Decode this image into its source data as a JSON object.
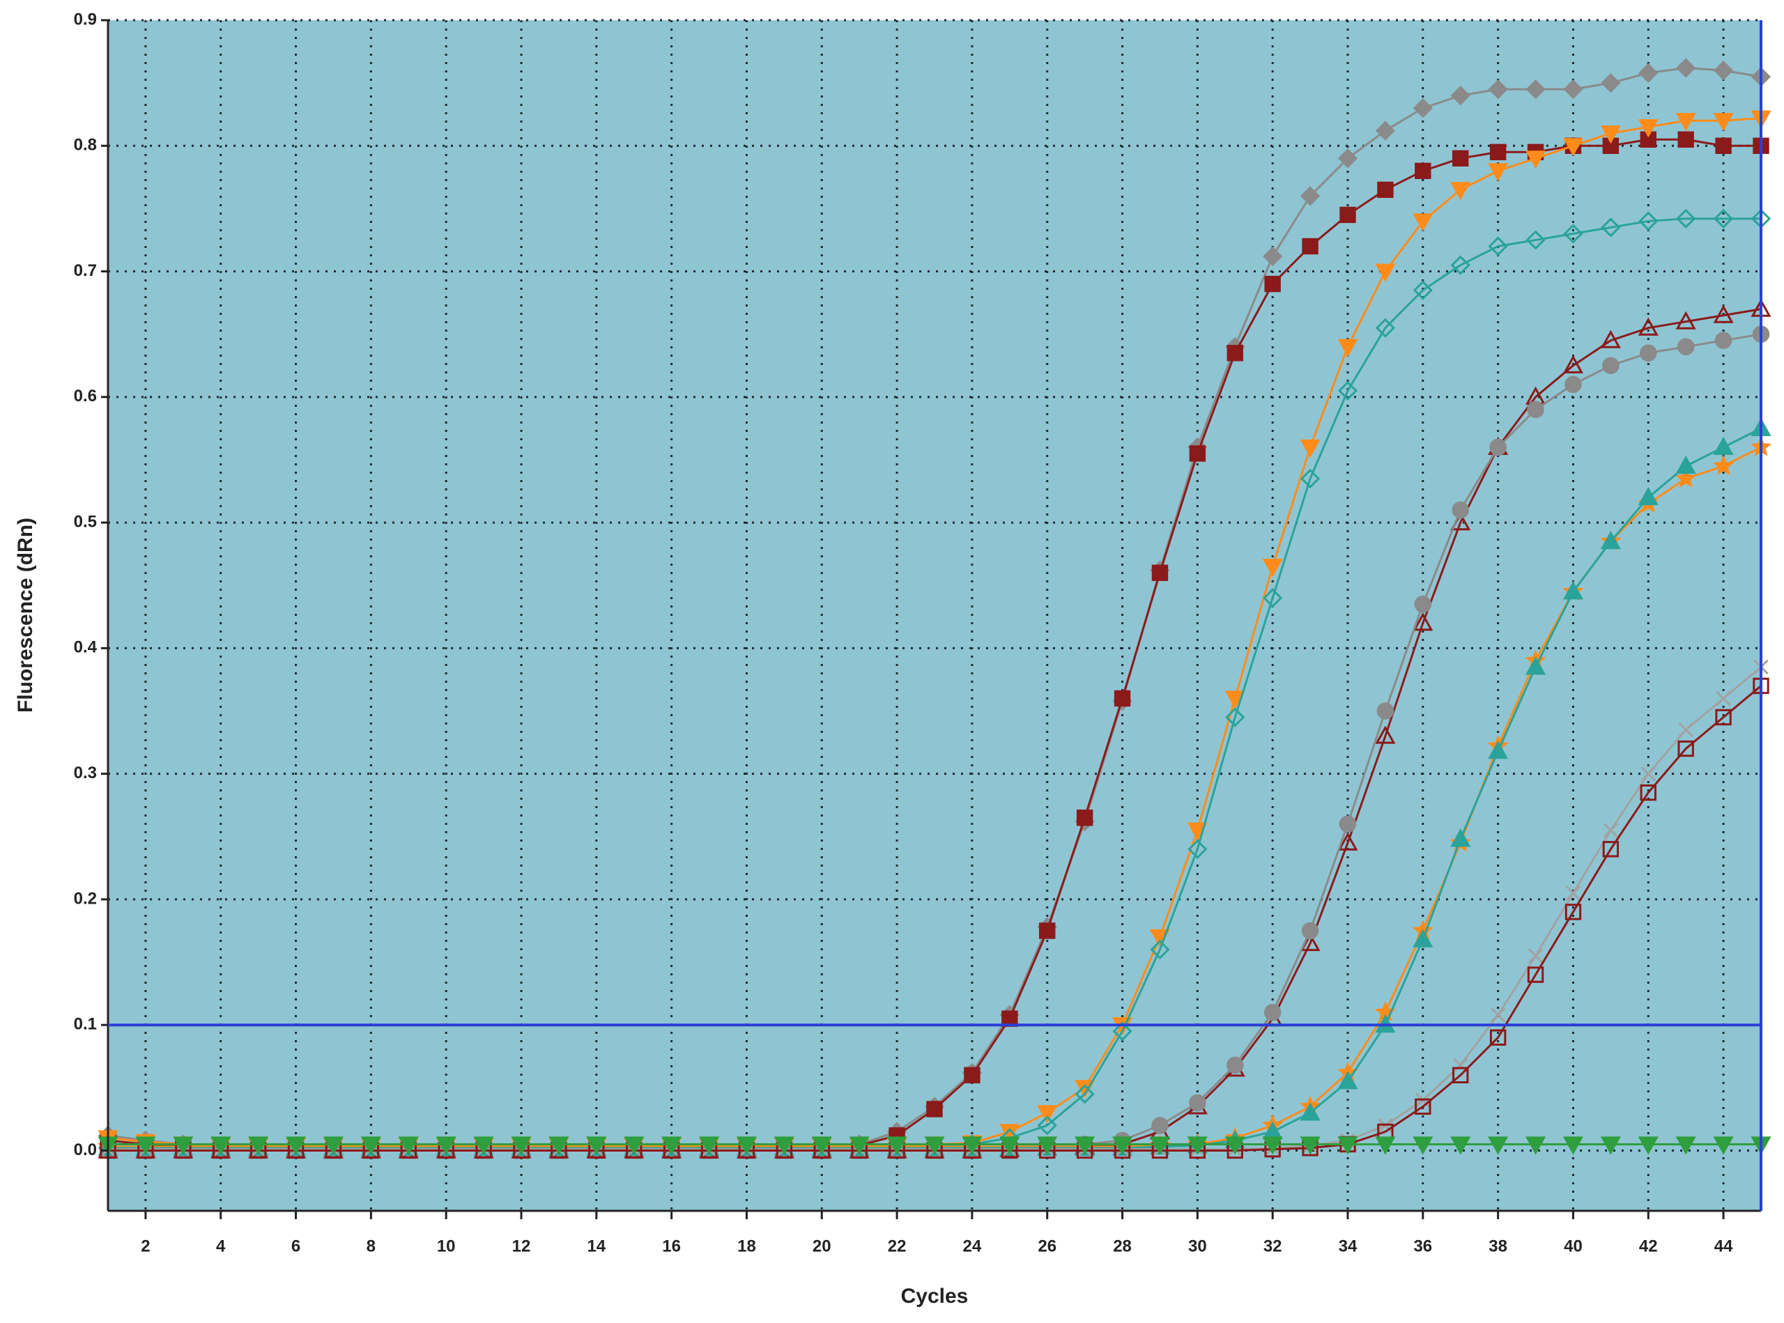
{
  "chart_data": {
    "type": "line",
    "y_label": "Fluorescence (dRn)",
    "x_label": "Cycles",
    "x": [
      1,
      2,
      3,
      4,
      5,
      6,
      7,
      8,
      9,
      10,
      11,
      12,
      13,
      14,
      15,
      16,
      17,
      18,
      19,
      20,
      21,
      22,
      23,
      24,
      25,
      26,
      27,
      28,
      29,
      30,
      31,
      32,
      33,
      34,
      35,
      36,
      37,
      38,
      39,
      40,
      41,
      42,
      43,
      44,
      45
    ],
    "xlim": [
      1,
      45
    ],
    "xticks": [
      2,
      4,
      6,
      8,
      10,
      12,
      14,
      16,
      18,
      20,
      22,
      24,
      26,
      28,
      30,
      32,
      34,
      36,
      38,
      40,
      42,
      44
    ],
    "ylim": [
      -0.048,
      0.9
    ],
    "yticks": [
      {
        "value": 0,
        "label": "0.0"
      },
      0.1,
      0.2,
      0.3,
      0.4,
      0.5,
      0.6,
      0.7,
      0.8,
      0.9
    ],
    "grid": true,
    "threshold": 0.1,
    "threshold_color": "#2a3fd6",
    "background": "#8fc5d3",
    "series": [
      {
        "color": "#8a8a8a",
        "marker": "diamond",
        "filled": true,
        "values": [
          0.012,
          0.008,
          0.005,
          0.003,
          0.003,
          0.003,
          0.003,
          0.003,
          0.003,
          0.003,
          0.003,
          0.003,
          0.003,
          0.003,
          0.003,
          0.003,
          0.003,
          0.003,
          0.003,
          0.003,
          0.005,
          0.015,
          0.035,
          0.062,
          0.108,
          0.178,
          0.262,
          0.358,
          0.462,
          0.56,
          0.64,
          0.712,
          0.76,
          0.79,
          0.812,
          0.83,
          0.84,
          0.845,
          0.845,
          0.845,
          0.85,
          0.858,
          0.862,
          0.86,
          0.855
        ]
      },
      {
        "color": "#8b1a1a",
        "marker": "square",
        "filled": true,
        "values": [
          0.008,
          0.005,
          0.003,
          0.001,
          0.001,
          0.001,
          0.001,
          0.001,
          0.001,
          0.001,
          0.001,
          0.001,
          0.001,
          0.001,
          0.001,
          0.001,
          0.001,
          0.001,
          0.001,
          0.001,
          0.004,
          0.012,
          0.033,
          0.06,
          0.105,
          0.175,
          0.265,
          0.36,
          0.46,
          0.555,
          0.635,
          0.69,
          0.72,
          0.745,
          0.765,
          0.78,
          0.79,
          0.795,
          0.795,
          0.8,
          0.8,
          0.805,
          0.805,
          0.8,
          0.8
        ]
      },
      {
        "color": "#ff8c1a",
        "marker": "triangle-down",
        "filled": true,
        "values": [
          0.01,
          0.007,
          0.005,
          0.004,
          0.004,
          0.004,
          0.004,
          0.004,
          0.004,
          0.004,
          0.004,
          0.004,
          0.004,
          0.004,
          0.004,
          0.004,
          0.004,
          0.004,
          0.004,
          0.004,
          0.004,
          0.004,
          0.005,
          0.006,
          0.015,
          0.03,
          0.05,
          0.1,
          0.17,
          0.255,
          0.36,
          0.465,
          0.56,
          0.64,
          0.7,
          0.74,
          0.765,
          0.78,
          0.79,
          0.8,
          0.81,
          0.815,
          0.82,
          0.82,
          0.822
        ]
      },
      {
        "color": "#2aa39a",
        "marker": "diamond",
        "filled": false,
        "values": [
          0.002,
          0.002,
          0.002,
          0.002,
          0.002,
          0.002,
          0.002,
          0.002,
          0.002,
          0.002,
          0.002,
          0.002,
          0.002,
          0.002,
          0.002,
          0.002,
          0.002,
          0.002,
          0.002,
          0.002,
          0.002,
          0.002,
          0.003,
          0.005,
          0.01,
          0.02,
          0.045,
          0.095,
          0.16,
          0.24,
          0.345,
          0.44,
          0.535,
          0.605,
          0.655,
          0.685,
          0.705,
          0.72,
          0.725,
          0.73,
          0.735,
          0.74,
          0.742,
          0.742,
          0.742
        ]
      },
      {
        "color": "#8b1a1a",
        "marker": "triangle-up",
        "filled": false,
        "values": [
          0,
          0,
          0,
          0,
          0,
          0,
          0,
          0,
          0,
          0,
          0,
          0,
          0,
          0,
          0,
          0,
          0,
          0,
          0,
          0,
          0,
          0,
          0,
          0,
          0.001,
          0.002,
          0.003,
          0.005,
          0.015,
          0.035,
          0.065,
          0.105,
          0.165,
          0.245,
          0.33,
          0.42,
          0.5,
          0.56,
          0.6,
          0.625,
          0.645,
          0.655,
          0.66,
          0.665,
          0.67
        ]
      },
      {
        "color": "#8a8a8a",
        "marker": "circle",
        "filled": true,
        "values": [
          0.002,
          0.002,
          0.002,
          0.002,
          0.002,
          0.002,
          0.002,
          0.002,
          0.002,
          0.002,
          0.002,
          0.002,
          0.002,
          0.002,
          0.002,
          0.002,
          0.002,
          0.002,
          0.002,
          0.002,
          0.002,
          0.002,
          0.002,
          0.002,
          0.003,
          0.004,
          0.005,
          0.008,
          0.02,
          0.038,
          0.068,
          0.11,
          0.175,
          0.26,
          0.35,
          0.435,
          0.51,
          0.56,
          0.59,
          0.61,
          0.625,
          0.635,
          0.64,
          0.645,
          0.65
        ]
      },
      {
        "color": "#ff8c1a",
        "marker": "star",
        "filled": true,
        "values": [
          0.003,
          0.003,
          0.003,
          0.003,
          0.003,
          0.003,
          0.003,
          0.003,
          0.003,
          0.003,
          0.003,
          0.003,
          0.003,
          0.003,
          0.003,
          0.003,
          0.003,
          0.003,
          0.003,
          0.003,
          0.003,
          0.003,
          0.003,
          0.003,
          0.003,
          0.003,
          0.003,
          0.003,
          0.004,
          0.005,
          0.01,
          0.02,
          0.035,
          0.062,
          0.11,
          0.175,
          0.245,
          0.322,
          0.39,
          0.445,
          0.485,
          0.515,
          0.535,
          0.545,
          0.56
        ]
      },
      {
        "color": "#2aa39a",
        "marker": "triangle-up",
        "filled": true,
        "values": [
          0.002,
          0.002,
          0.002,
          0.002,
          0.002,
          0.002,
          0.002,
          0.002,
          0.002,
          0.002,
          0.002,
          0.002,
          0.002,
          0.002,
          0.002,
          0.002,
          0.002,
          0.002,
          0.002,
          0.002,
          0.002,
          0.002,
          0.002,
          0.002,
          0.002,
          0.002,
          0.002,
          0.002,
          0.003,
          0.004,
          0.008,
          0.015,
          0.03,
          0.055,
          0.1,
          0.168,
          0.248,
          0.318,
          0.385,
          0.445,
          0.485,
          0.52,
          0.545,
          0.56,
          0.575
        ]
      },
      {
        "color": "#a2a2a2",
        "marker": "x",
        "filled": false,
        "values": [
          0.001,
          0.001,
          0.001,
          0.001,
          0.001,
          0.001,
          0.001,
          0.001,
          0.001,
          0.001,
          0.001,
          0.001,
          0.001,
          0.001,
          0.001,
          0.001,
          0.001,
          0.001,
          0.001,
          0.001,
          0.001,
          0.001,
          0.001,
          0.001,
          0.001,
          0.001,
          0.001,
          0.001,
          0.001,
          0.001,
          0.001,
          0.002,
          0.004,
          0.008,
          0.02,
          0.04,
          0.068,
          0.108,
          0.155,
          0.205,
          0.255,
          0.3,
          0.335,
          0.36,
          0.385
        ]
      },
      {
        "color": "#8b1a1a",
        "marker": "square",
        "filled": false,
        "values": [
          0,
          0,
          0,
          0,
          0,
          0,
          0,
          0,
          0,
          0,
          0,
          0,
          0,
          0,
          0,
          0,
          0,
          0,
          0,
          0,
          0,
          0,
          0,
          0,
          0,
          0,
          0,
          0,
          0,
          0,
          0,
          0.001,
          0.002,
          0.005,
          0.015,
          0.035,
          0.06,
          0.09,
          0.14,
          0.19,
          0.24,
          0.285,
          0.32,
          0.345,
          0.37
        ]
      },
      {
        "color": "#2e9e3e",
        "marker": "triangle-down",
        "filled": true,
        "values": [
          0.005,
          0.005,
          0.005,
          0.005,
          0.005,
          0.005,
          0.005,
          0.005,
          0.005,
          0.005,
          0.005,
          0.005,
          0.005,
          0.005,
          0.005,
          0.005,
          0.005,
          0.005,
          0.005,
          0.005,
          0.005,
          0.005,
          0.005,
          0.005,
          0.005,
          0.005,
          0.005,
          0.005,
          0.005,
          0.005,
          0.005,
          0.005,
          0.005,
          0.005,
          0.005,
          0.005,
          0.005,
          0.005,
          0.005,
          0.005,
          0.005,
          0.005,
          0.005,
          0.005,
          0.005
        ]
      }
    ]
  }
}
